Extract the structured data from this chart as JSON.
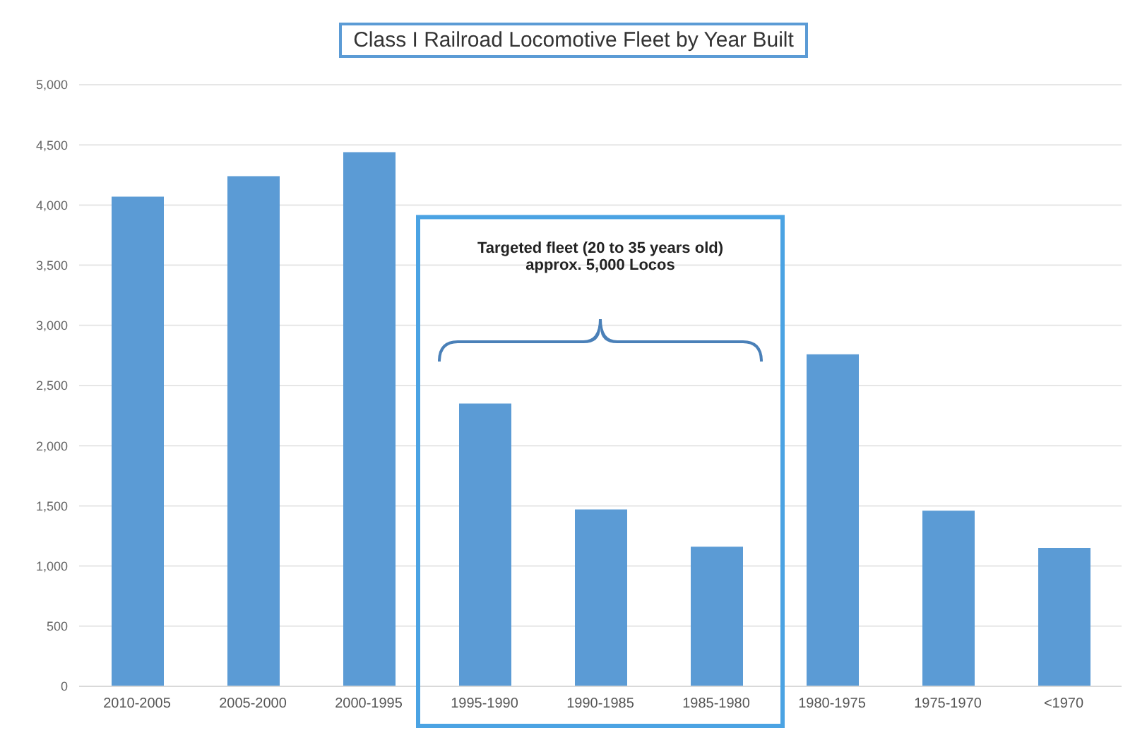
{
  "chart_data": {
    "type": "bar",
    "title": "Class I Railroad Locomotive Fleet by Year Built",
    "categories": [
      "2010-2005",
      "2005-2000",
      "2000-1995",
      "1995-1990",
      "1990-1985",
      "1985-1980",
      "1980-1975",
      "1975-1970",
      "<1970"
    ],
    "values": [
      4070,
      4240,
      4440,
      2350,
      1470,
      1160,
      2760,
      1460,
      1150
    ],
    "color": "#5b9bd5",
    "ylim": [
      0,
      5000
    ],
    "yticks": [
      {
        "value": 0,
        "label": "0"
      },
      {
        "value": 500,
        "label": "500"
      },
      {
        "value": 1000,
        "label": "1,000"
      },
      {
        "value": 1500,
        "label": "1,500"
      },
      {
        "value": 2000,
        "label": "2,000"
      },
      {
        "value": 2500,
        "label": "2,500"
      },
      {
        "value": 3000,
        "label": "3,000"
      },
      {
        "value": 3500,
        "label": "3,500"
      },
      {
        "value": 4000,
        "label": "4,000"
      },
      {
        "value": 4500,
        "label": "4,500"
      },
      {
        "value": 5000,
        "label": "5,000"
      }
    ],
    "grid": "y",
    "annotations": [
      "Targeted fleet (20 to 35 years old)\napprox. 5,000 Locos"
    ]
  }
}
